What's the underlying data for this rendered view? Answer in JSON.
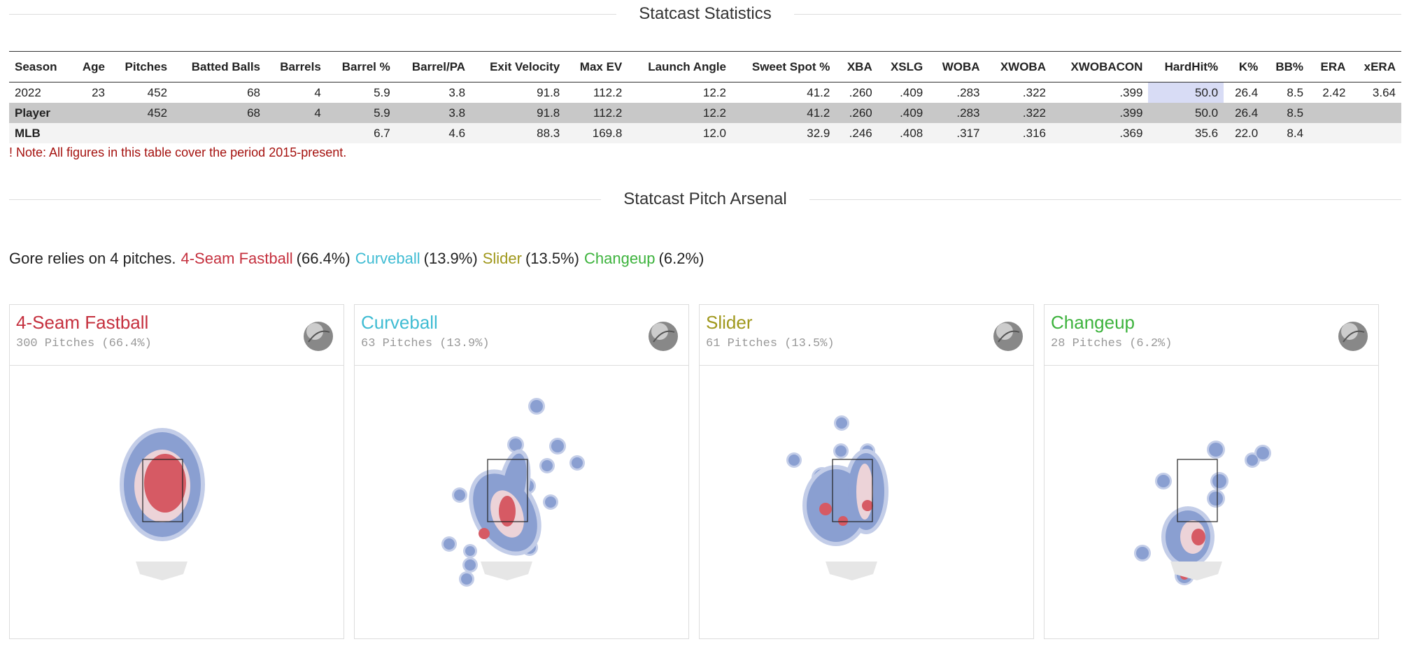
{
  "statistics": {
    "title": "Statcast Statistics",
    "headers": [
      "Season",
      "Age",
      "Pitches",
      "Batted Balls",
      "Barrels",
      "Barrel %",
      "Barrel/PA",
      "Exit Velocity",
      "Max EV",
      "Launch Angle",
      "Sweet Spot %",
      "XBA",
      "XSLG",
      "WOBA",
      "XWOBA",
      "XWOBACON",
      "HardHit%",
      "K%",
      "BB%",
      "ERA",
      "xERA"
    ],
    "rows": [
      [
        "2022",
        "23",
        "452",
        "68",
        "4",
        "5.9",
        "3.8",
        "91.8",
        "112.2",
        "12.2",
        "41.2",
        ".260",
        ".409",
        ".283",
        ".322",
        ".399",
        "50.0",
        "26.4",
        "8.5",
        "2.42",
        "3.64"
      ],
      [
        "Player",
        null,
        "452",
        "68",
        "4",
        "5.9",
        "3.8",
        "91.8",
        "112.2",
        "12.2",
        "41.2",
        ".260",
        ".409",
        ".283",
        ".322",
        ".399",
        "50.0",
        "26.4",
        "8.5",
        null,
        null
      ],
      [
        "MLB",
        null,
        null,
        null,
        null,
        "6.7",
        "4.6",
        "88.3",
        "169.8",
        "12.0",
        "32.9",
        ".246",
        ".408",
        ".317",
        ".316",
        ".369",
        "35.6",
        "22.0",
        "8.4",
        null,
        null
      ]
    ],
    "note": "! Note: All figures in this table cover the period 2015-present."
  },
  "arsenal": {
    "title": "Statcast Pitch Arsenal",
    "intro": "Gore relies on 4 pitches.",
    "pitches": [
      {
        "name": "4-Seam Fastball",
        "share": "(66.4%)",
        "count": "300 Pitches (66.4%)",
        "color": "#c5303e"
      },
      {
        "name": "Curveball",
        "share": "(13.9%)",
        "count": "63 Pitches (13.9%)",
        "color": "#3fbcd3"
      },
      {
        "name": "Slider",
        "share": "(13.5%)",
        "count": "61 Pitches (13.5%)",
        "color": "#a0981c"
      },
      {
        "name": "Changeup",
        "share": "(6.2%)",
        "count": "28 Pitches (6.2%)",
        "color": "#3db33d"
      }
    ]
  }
}
